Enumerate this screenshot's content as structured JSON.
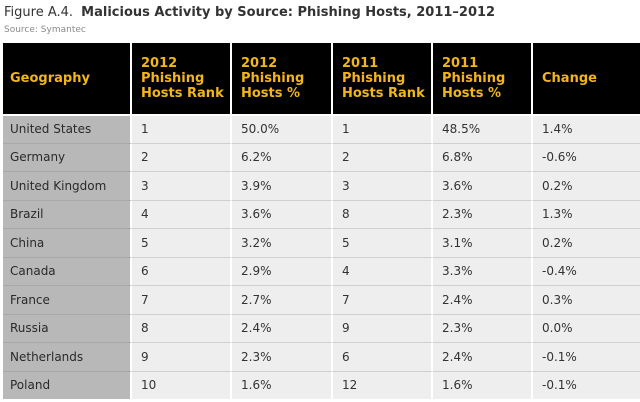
{
  "figure": {
    "number": "Figure A.4.",
    "title": "Malicious Activity by Source: Phishing Hosts, 2011–2012",
    "source": "Source: Symantec"
  },
  "table": {
    "headers": [
      "Geography",
      "2012 Phishing Hosts Rank",
      "2012 Phishing Hosts %",
      "2011 Phishing Hosts Rank",
      "2011 Phishing Hosts %",
      "Change"
    ],
    "rows": [
      [
        "United States",
        "1",
        "50.0%",
        "1",
        "48.5%",
        "1.4%"
      ],
      [
        "Germany",
        "2",
        "6.2%",
        "2",
        "6.8%",
        "-0.6%"
      ],
      [
        "United Kingdom",
        "3",
        "3.9%",
        "3",
        "3.6%",
        "0.2%"
      ],
      [
        "Brazil",
        "4",
        "3.6%",
        "8",
        "2.3%",
        "1.3%"
      ],
      [
        "China",
        "5",
        "3.2%",
        "5",
        "3.1%",
        "0.2%"
      ],
      [
        "Canada",
        "6",
        "2.9%",
        "4",
        "3.3%",
        "-0.4%"
      ],
      [
        "France",
        "7",
        "2.7%",
        "7",
        "2.4%",
        "0.3%"
      ],
      [
        "Russia",
        "8",
        "2.4%",
        "9",
        "2.3%",
        "0.0%"
      ],
      [
        "Netherlands",
        "9",
        "2.3%",
        "6",
        "2.4%",
        "-0.1%"
      ],
      [
        "Poland",
        "10",
        "1.6%",
        "12",
        "1.6%",
        "-0.1%"
      ]
    ]
  },
  "colors": {
    "header_bg": "#000000",
    "header_text": "#f2b61b",
    "geography_cell_bg": "#b8b8b8",
    "data_cell_bg": "#eeeeee"
  }
}
